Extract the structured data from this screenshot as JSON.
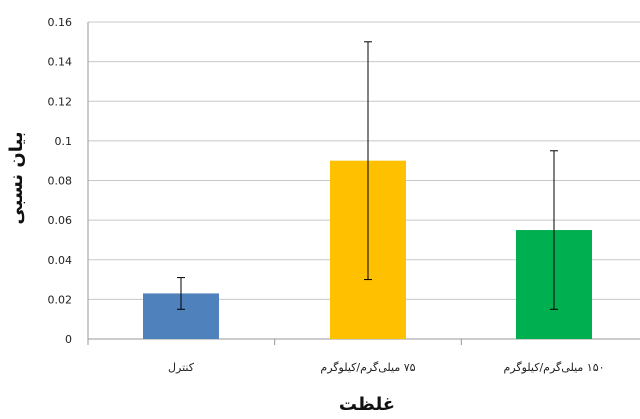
{
  "chart_data": {
    "type": "bar",
    "categories": [
      "کنترل",
      "۷۵ میلی‌گرم/کیلوگرم",
      "۱۵۰ میلی‌گرم/کیلوگرم"
    ],
    "values": [
      0.023,
      0.09,
      0.055
    ],
    "error_low": [
      0.015,
      0.03,
      0.015
    ],
    "error_high": [
      0.031,
      0.15,
      0.095
    ],
    "bar_colors": [
      "#4f81bd",
      "#ffc000",
      "#00b050"
    ],
    "xlabel": "غلظت",
    "ylabel": "بیان نسبی",
    "ylim": [
      0,
      0.16
    ],
    "yticks": [
      "0",
      "0.02",
      "0.04",
      "0.06",
      "0.08",
      "0.1",
      "0.12",
      "0.14",
      "0.16"
    ],
    "grid": true,
    "legend": "none"
  }
}
